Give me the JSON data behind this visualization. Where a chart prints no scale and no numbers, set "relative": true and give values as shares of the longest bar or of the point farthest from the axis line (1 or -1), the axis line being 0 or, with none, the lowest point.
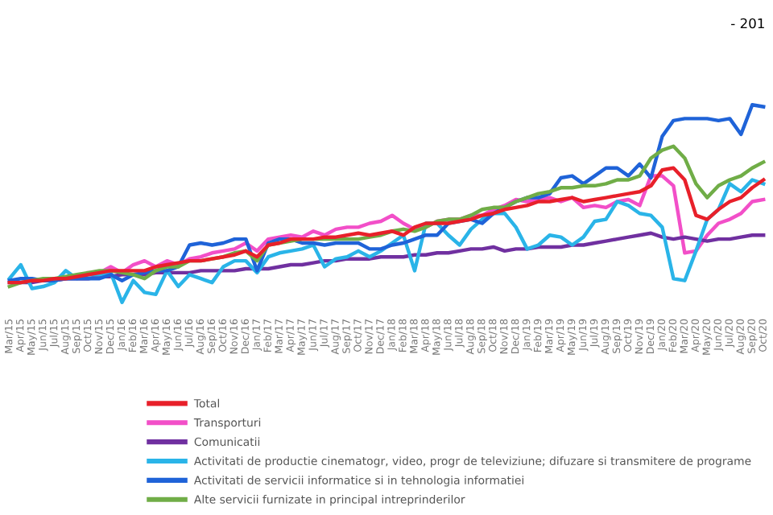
{
  "chart_data": {
    "type": "line",
    "relative": true,
    "legend": "bottom",
    "annotations": [
      "- 201"
    ],
    "categories": [
      "Mar/15",
      "Apr/15",
      "May/15",
      "Jun/15",
      "Jul/15",
      "Aug/15",
      "Sep/15",
      "Oct/15",
      "Nov/15",
      "Dec/15",
      "Jan/16",
      "Feb/16",
      "Mar/16",
      "Apr/16",
      "May/16",
      "Jun/16",
      "Jul/16",
      "Aug/16",
      "Sep/16",
      "Oct/16",
      "Nov/16",
      "Dec/16",
      "Jan/17",
      "Feb/17",
      "Mar/17",
      "Apr/17",
      "May/17",
      "Jun/17",
      "Jul/17",
      "Aug/17",
      "Sep/17",
      "Oct/17",
      "Nov/17",
      "Dec/17",
      "Jan/18",
      "Feb/18",
      "Mar/18",
      "Apr/18",
      "May/18",
      "Jun/18",
      "Jul/18",
      "Aug/18",
      "Sep/18",
      "Oct/18",
      "Nov/18",
      "Dec/18",
      "Jan/19",
      "Feb/19",
      "Mar/19",
      "Apr/19",
      "May/19",
      "Jun/19",
      "Jul/19",
      "Aug/19",
      "Sep/19",
      "Oct/19",
      "Nov/19",
      "Dec/19",
      "Jan/20",
      "Feb/20",
      "Mar/20",
      "Apr/20",
      "May/20",
      "Jun/20",
      "Jul/20",
      "Aug/20",
      "Sep/20",
      "Oct/20"
    ],
    "series": [
      {
        "name": "Total",
        "color": "#e8202a",
        "values": [
          0.1,
          0.1,
          0.11,
          0.11,
          0.12,
          0.12,
          0.13,
          0.14,
          0.15,
          0.16,
          0.16,
          0.16,
          0.16,
          0.18,
          0.19,
          0.2,
          0.21,
          0.21,
          0.22,
          0.23,
          0.24,
          0.26,
          0.23,
          0.29,
          0.3,
          0.32,
          0.32,
          0.32,
          0.33,
          0.33,
          0.34,
          0.35,
          0.34,
          0.35,
          0.36,
          0.34,
          0.38,
          0.4,
          0.4,
          0.4,
          0.41,
          0.42,
          0.44,
          0.45,
          0.47,
          0.48,
          0.49,
          0.51,
          0.51,
          0.52,
          0.53,
          0.51,
          0.52,
          0.53,
          0.54,
          0.55,
          0.56,
          0.59,
          0.67,
          0.68,
          0.62,
          0.44,
          0.42,
          0.47,
          0.51,
          0.53,
          0.58,
          0.62
        ]
      },
      {
        "name": "Transporturi",
        "color": "#f24fc8",
        "values": [
          null,
          null,
          null,
          null,
          null,
          null,
          null,
          0.15,
          0.15,
          0.18,
          0.15,
          0.19,
          0.21,
          0.18,
          0.21,
          0.19,
          0.22,
          0.23,
          0.25,
          0.26,
          0.27,
          0.3,
          0.26,
          0.32,
          0.33,
          0.34,
          0.33,
          0.36,
          0.34,
          0.37,
          0.38,
          0.38,
          0.4,
          0.41,
          0.44,
          0.4,
          0.37,
          0.38,
          0.41,
          0.42,
          0.42,
          0.44,
          0.44,
          0.47,
          0.49,
          0.52,
          0.51,
          0.52,
          0.53,
          0.51,
          0.53,
          0.48,
          0.49,
          0.48,
          0.51,
          0.52,
          0.49,
          0.64,
          0.64,
          0.59,
          0.25,
          0.26,
          0.34,
          0.4,
          0.42,
          0.45,
          0.51,
          0.52
        ]
      },
      {
        "name": "Comunicatii",
        "color": "#7030a0",
        "values": [
          0.1,
          0.1,
          0.1,
          0.11,
          0.11,
          0.12,
          0.12,
          0.12,
          0.13,
          0.13,
          0.14,
          0.14,
          0.14,
          0.15,
          0.15,
          0.15,
          0.15,
          0.16,
          0.16,
          0.16,
          0.16,
          0.17,
          0.17,
          0.17,
          0.18,
          0.19,
          0.19,
          0.2,
          0.21,
          0.21,
          0.22,
          0.22,
          0.22,
          0.23,
          0.23,
          0.23,
          0.24,
          0.24,
          0.25,
          0.25,
          0.26,
          0.27,
          0.27,
          0.28,
          0.26,
          0.27,
          0.27,
          0.28,
          0.28,
          0.28,
          0.29,
          0.29,
          0.3,
          0.31,
          0.32,
          0.33,
          0.34,
          0.35,
          0.33,
          0.32,
          0.33,
          0.32,
          0.31,
          0.32,
          0.32,
          0.33,
          0.34,
          0.34
        ]
      },
      {
        "name": "Activitati de productie cinematogr, video, progr de televiziune; difuzare si transmitere de programe",
        "color": "#2ab4e8",
        "values": [
          0.12,
          0.19,
          0.07,
          0.08,
          0.1,
          0.16,
          0.12,
          0.14,
          0.14,
          0.15,
          0,
          0.11,
          0.05,
          0.04,
          0.16,
          0.08,
          0.14,
          0.12,
          0.1,
          0.18,
          0.21,
          0.21,
          0.15,
          0.23,
          0.25,
          0.26,
          0.27,
          0.29,
          0.18,
          0.22,
          0.23,
          0.26,
          0.23,
          0.26,
          0.3,
          0.34,
          0.16,
          0.4,
          0.4,
          0.34,
          0.29,
          0.37,
          0.42,
          0.45,
          0.45,
          0.38,
          0.27,
          0.29,
          0.34,
          0.33,
          0.29,
          0.33,
          0.41,
          0.42,
          0.51,
          0.49,
          0.45,
          0.44,
          0.38,
          0.12,
          0.11,
          0.26,
          0.42,
          0.47,
          0.6,
          0.56,
          0.62,
          0.6
        ]
      },
      {
        "name": "Activitati de servicii informatice si in tehnologia informatiei",
        "color": "#1f63d8",
        "values": [
          0.11,
          0.12,
          0.12,
          0.11,
          0.11,
          0.12,
          0.12,
          0.12,
          0.12,
          0.14,
          0.11,
          0.14,
          0.15,
          0.16,
          0.16,
          0.18,
          0.29,
          0.3,
          0.29,
          0.3,
          0.32,
          0.32,
          0.16,
          0.3,
          0.32,
          0.32,
          0.3,
          0.3,
          0.29,
          0.3,
          0.3,
          0.3,
          0.27,
          0.27,
          0.29,
          0.3,
          0.32,
          0.34,
          0.34,
          0.4,
          0.41,
          0.42,
          0.4,
          0.45,
          0.48,
          0.51,
          0.53,
          0.53,
          0.55,
          0.63,
          0.64,
          0.6,
          0.64,
          0.68,
          0.68,
          0.64,
          0.7,
          0.63,
          0.84,
          0.92,
          0.93,
          0.93,
          0.93,
          0.92,
          0.93,
          0.85,
          1,
          0.99
        ]
      },
      {
        "name": "Alte servicii furnizate in principal intreprinderilor",
        "color": "#70ad47",
        "values": [
          0.08,
          0.1,
          0.11,
          0.12,
          0.12,
          0.13,
          0.14,
          0.15,
          0.16,
          0.16,
          0.15,
          0.14,
          0.12,
          0.16,
          0.18,
          0.18,
          0.21,
          0.21,
          0.22,
          0.23,
          0.25,
          0.26,
          0.21,
          0.29,
          0.3,
          0.31,
          0.32,
          0.32,
          0.32,
          0.32,
          0.32,
          0.32,
          0.33,
          0.34,
          0.36,
          0.37,
          0.36,
          0.38,
          0.41,
          0.42,
          0.42,
          0.44,
          0.47,
          0.48,
          0.48,
          0.51,
          0.53,
          0.55,
          0.56,
          0.58,
          0.58,
          0.59,
          0.59,
          0.6,
          0.62,
          0.62,
          0.64,
          0.73,
          0.77,
          0.79,
          0.73,
          0.6,
          0.53,
          0.59,
          0.62,
          0.64,
          0.68,
          0.71
        ]
      }
    ]
  }
}
